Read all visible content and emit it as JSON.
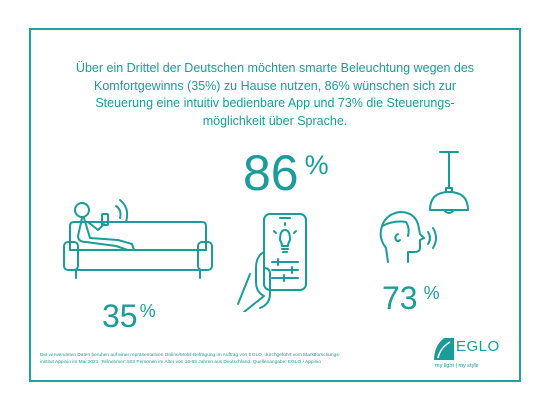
{
  "headline": {
    "line1": "Über ein Drittel der Deutschen möchten smarte Beleuchtung wegen des",
    "line2": "Komfortgewinns (35%) zu Hause nutzen, 86% wünschen sich zur",
    "line3": "Steuerung eine intuitiv bedienbare App und 73% die Steuerungs-",
    "line4": "möglichkeit über Sprache."
  },
  "stats": {
    "app": {
      "number": "86",
      "unit": "%"
    },
    "comfort": {
      "number": "35",
      "unit": "%"
    },
    "voice": {
      "number": "73",
      "unit": "%"
    }
  },
  "footnote": {
    "line1": "Die verwendeten Daten beruhen auf einer repräsentativen Online/Mobil-Befragung im Auftrag von EGLO, durchgeführt vom Marktforschungs-",
    "line2": "institut Appinio im Mai 2021. Teilnehmer: 503 Personen im Alter von 16-65 Jahren aus Deutschland. Quellenangabe: EGLO / Appinio"
  },
  "logo": {
    "name": "EGLO",
    "tagline": "my light | my style"
  },
  "colors": {
    "accent": "#1a9d9a",
    "border": "#1aa5a2"
  },
  "icons": {
    "comfort": "person-on-sofa-with-phone-icon",
    "app": "hand-holding-smartphone-app-icon",
    "lamp": "pendant-lamp-icon",
    "voice": "head-speaking-icon"
  }
}
